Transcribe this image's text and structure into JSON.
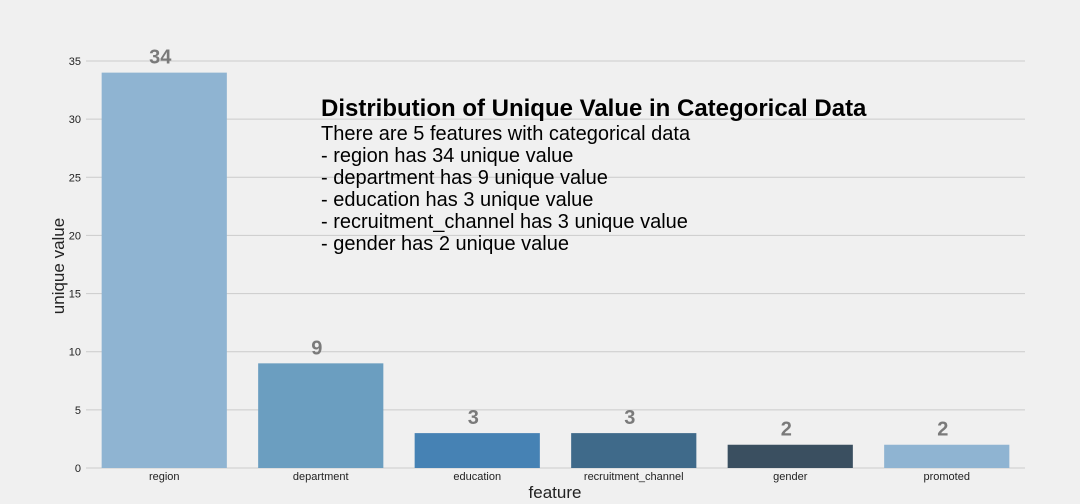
{
  "chart_data": {
    "type": "bar",
    "title": "",
    "xlabel": "feature",
    "ylabel": "unique value",
    "categories": [
      "region",
      "department",
      "education",
      "recruitment_channel",
      "gender",
      "promoted"
    ],
    "values": [
      34,
      9,
      3,
      3,
      2,
      2
    ],
    "data_labels": [
      "34",
      "9",
      "3",
      "3",
      "2",
      "2"
    ],
    "ylim": [
      0,
      35
    ],
    "yticks": [
      0,
      5,
      10,
      15,
      20,
      25,
      30,
      35
    ],
    "grid": true,
    "colors": [
      "#8fb4d2",
      "#6b9ec0",
      "#4682b4",
      "#3f6a8a",
      "#3a4f60",
      "#8fb4d2"
    ],
    "background": "#f0f0f0",
    "annotation": {
      "title": "Distribution of Unique Value in Categorical Data",
      "lines": [
        "There are 5 features with categorical data",
        "- region has 34 unique value",
        "- department has 9 unique value",
        "- education has 3 unique value",
        "- recruitment_channel has 3 unique value",
        "- gender has 2 unique value"
      ]
    }
  }
}
